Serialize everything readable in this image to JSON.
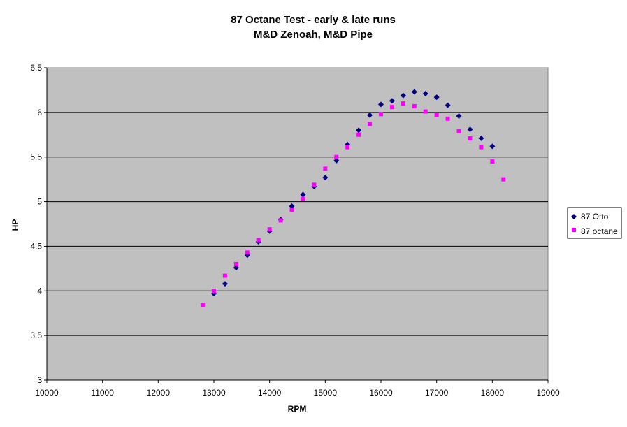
{
  "chart_data": {
    "type": "scatter",
    "title": "87 Octane Test - early & late runs",
    "subtitle": "M&D Zenoah, M&D Pipe",
    "xlabel": "RPM",
    "ylabel": "HP",
    "xlim": [
      10000,
      19000
    ],
    "ylim": [
      3,
      6.5
    ],
    "x_ticks": [
      10000,
      11000,
      12000,
      13000,
      14000,
      15000,
      16000,
      17000,
      18000,
      19000
    ],
    "y_ticks": [
      3,
      3.5,
      4,
      4.5,
      5,
      5.5,
      6,
      6.5
    ],
    "y_tick_labels": [
      "3",
      "3.5",
      "4",
      "4.5",
      "5",
      "5.5",
      "6",
      "6.5"
    ],
    "grid": "horizontal major gridlines",
    "plot_background": "#c0c0c0",
    "legend_position": "right",
    "series": [
      {
        "name": "87 Otto",
        "marker": "diamond",
        "color": "#000080",
        "x": [
          13000,
          13200,
          13400,
          13600,
          13800,
          14000,
          14200,
          14400,
          14600,
          14800,
          15000,
          15200,
          15400,
          15600,
          15800,
          16000,
          16200,
          16400,
          16600,
          16800,
          17000,
          17200,
          17400,
          17600,
          17800,
          18000
        ],
        "y": [
          3.97,
          4.08,
          4.26,
          4.4,
          4.55,
          4.67,
          4.8,
          4.95,
          5.08,
          5.17,
          5.27,
          5.46,
          5.64,
          5.8,
          5.97,
          6.09,
          6.13,
          6.19,
          6.23,
          6.21,
          6.17,
          6.08,
          5.96,
          5.81,
          5.71,
          5.62
        ]
      },
      {
        "name": "87 octane",
        "marker": "square",
        "color": "#ff00ff",
        "x": [
          12800,
          13000,
          13200,
          13400,
          13600,
          13800,
          14000,
          14200,
          14400,
          14600,
          14800,
          15000,
          15200,
          15400,
          15600,
          15800,
          16000,
          16200,
          16400,
          16600,
          16800,
          17000,
          17200,
          17400,
          17600,
          17800,
          18000,
          18200
        ],
        "y": [
          3.84,
          4.0,
          4.17,
          4.3,
          4.43,
          4.57,
          4.69,
          4.79,
          4.91,
          5.03,
          5.19,
          5.37,
          5.5,
          5.61,
          5.75,
          5.87,
          5.98,
          6.06,
          6.1,
          6.07,
          6.01,
          5.97,
          5.93,
          5.79,
          5.71,
          5.61,
          5.45,
          5.25
        ]
      }
    ]
  }
}
